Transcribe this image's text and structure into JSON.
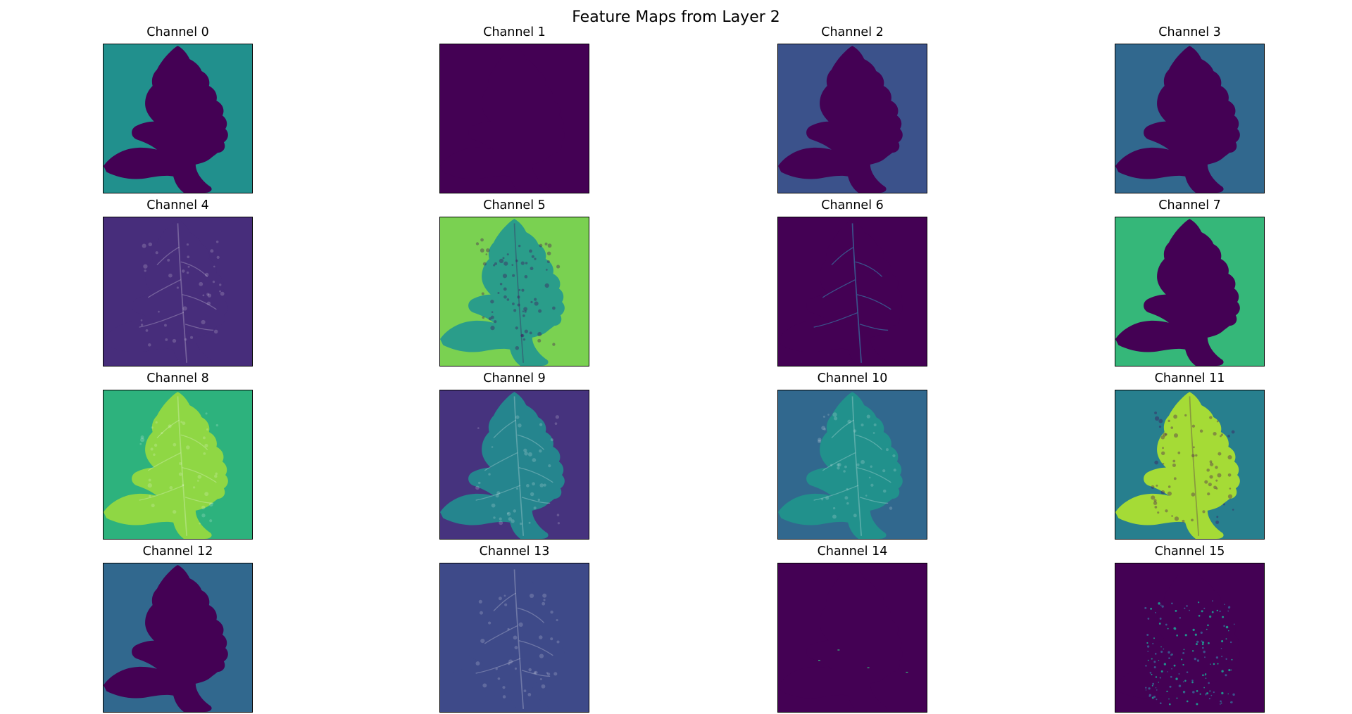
{
  "figure": {
    "title": "Feature Maps from Layer 2",
    "colormap": "viridis",
    "rows": 4,
    "cols": 4
  },
  "channels": [
    {
      "label": "Channel 0",
      "bg": "#21908d",
      "leaf": "#440154",
      "texture": "none"
    },
    {
      "label": "Channel 1",
      "bg": "#440154",
      "leaf": "#440154",
      "texture": "none"
    },
    {
      "label": "Channel 2",
      "bg": "#3b528b",
      "leaf": "#440154",
      "texture": "none"
    },
    {
      "label": "Channel 3",
      "bg": "#31688e",
      "leaf": "#440154",
      "texture": "none"
    },
    {
      "label": "Channel 4",
      "bg": "#472d7b",
      "leaf": "#472d7b",
      "texture": "veins"
    },
    {
      "label": "Channel 5",
      "bg": "#7ad151",
      "leaf": "#2a9d8a",
      "texture": "spots"
    },
    {
      "label": "Channel 6",
      "bg": "#440154",
      "leaf": "#440154",
      "texture": "faint"
    },
    {
      "label": "Channel 7",
      "bg": "#35b779",
      "leaf": "#440154",
      "texture": "none"
    },
    {
      "label": "Channel 8",
      "bg": "#2db27d",
      "leaf": "#8fd744",
      "texture": "veins"
    },
    {
      "label": "Channel 9",
      "bg": "#46337e",
      "leaf": "#25858e",
      "texture": "veins"
    },
    {
      "label": "Channel 10",
      "bg": "#31688e",
      "leaf": "#21918c",
      "texture": "veins"
    },
    {
      "label": "Channel 11",
      "bg": "#277f8e",
      "leaf": "#a5db36",
      "texture": "spots"
    },
    {
      "label": "Channel 12",
      "bg": "#31688e",
      "leaf": "#440154",
      "texture": "none"
    },
    {
      "label": "Channel 13",
      "bg": "#3e4a89",
      "leaf": "#3e4a89",
      "texture": "veins"
    },
    {
      "label": "Channel 14",
      "bg": "#440154",
      "leaf": "#440154",
      "texture": "dots"
    },
    {
      "label": "Channel 15",
      "bg": "#440154",
      "leaf": "#440154",
      "texture": "sparkle"
    }
  ]
}
